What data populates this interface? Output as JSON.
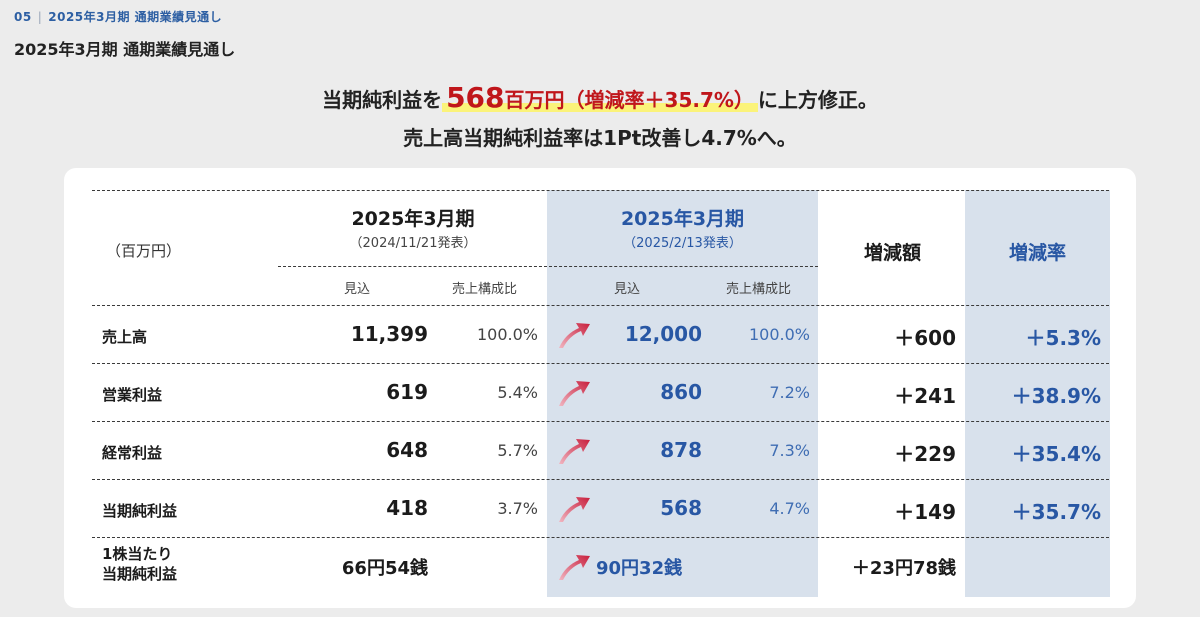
{
  "breadcrumb": {
    "number": "05",
    "separator": "|",
    "label": "2025年3月期 通期業績見通し"
  },
  "page_title": "2025年3月期 通期業績見通し",
  "headline": {
    "l1_before": "当期純利益を",
    "l1_value": "568",
    "l1_unit": "百万円",
    "l1_paren": "（増減率＋35.7%）",
    "l1_after": "に上方修正。",
    "l2": "売上高当期純利益率は1Pt改善し4.7%へ。"
  },
  "table": {
    "unit": "（百万円）",
    "prev": {
      "title": "2025年3月期",
      "date": "（2024/11/21発表）",
      "col1": "見込",
      "col2": "売上構成比"
    },
    "curr": {
      "title": "2025年3月期",
      "date": "（2025/2/13発表）",
      "col1": "見込",
      "col2": "売上構成比"
    },
    "diff_header": "増減額",
    "rate_header": "増減率",
    "rows": [
      {
        "label": "売上高",
        "prev": "11,399",
        "prev_ratio": "100.0%",
        "curr": "12,000",
        "curr_ratio": "100.0%",
        "diff": "＋600",
        "rate": "＋5.3%"
      },
      {
        "label": "営業利益",
        "prev": "619",
        "prev_ratio": "5.4%",
        "curr": "860",
        "curr_ratio": "7.2%",
        "diff": "＋241",
        "rate": "＋38.9%"
      },
      {
        "label": "経常利益",
        "prev": "648",
        "prev_ratio": "5.7%",
        "curr": "878",
        "curr_ratio": "7.3%",
        "diff": "＋229",
        "rate": "＋35.4%"
      },
      {
        "label": "当期純利益",
        "prev": "418",
        "prev_ratio": "3.7%",
        "curr": "568",
        "curr_ratio": "4.7%",
        "diff": "＋149",
        "rate": "＋35.7%"
      }
    ],
    "eps": {
      "label_l1": "1株当たり",
      "label_l2": "当期純利益",
      "prev": "66円54銭",
      "curr": "90円32銭",
      "diff": "＋23円78銭"
    }
  },
  "icons": {
    "up_arrow": "trend-up-arrow-icon"
  },
  "colors": {
    "accent_blue": "#2857a4",
    "highlight_red": "#c0161b",
    "shade": "#d8e1ec",
    "marker_yellow": "#fbf37a"
  }
}
